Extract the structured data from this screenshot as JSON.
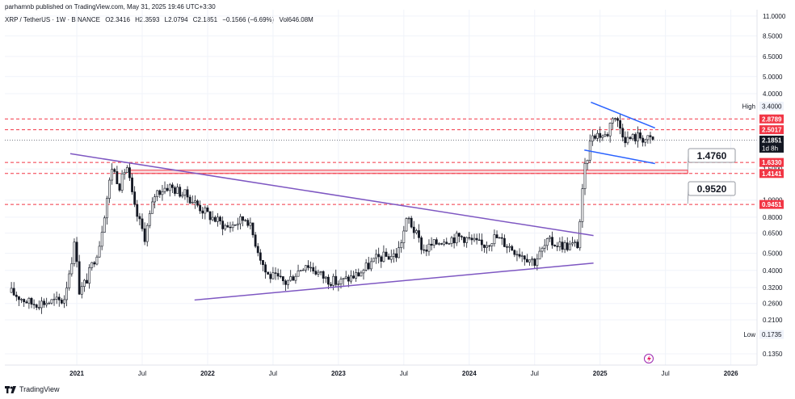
{
  "header": {
    "publisher_line": "parhamnb published on TradingView.com, May 31, 2025 19:46 UTC+3:30",
    "symbol": "XRP / TetherUS · 1W · BINANCE",
    "open": "O2.3416",
    "high": "H2.3593",
    "low": "L2.0794",
    "close": "C2.1851",
    "change": "−0.1566 (−6.69%)",
    "volume": "Vol646.08M"
  },
  "footer": {
    "brand": "TradingView",
    "logo_icon": "tradingview-logo-icon"
  },
  "colors": {
    "candle": "#131722",
    "purple_line": "#7e57c2",
    "blue_channel": "#2962ff",
    "red_level": "#f23645",
    "zone_fill": "#f8d7d9",
    "axis_text": "#131722",
    "callout_border": "#131722"
  },
  "chart_data": {
    "type": "candlestick",
    "timeframe": "1W",
    "y_scale": "log",
    "y_ticks": [
      {
        "value": 11.0,
        "label": "11.0000"
      },
      {
        "value": 8.5,
        "label": "8.5000"
      },
      {
        "value": 6.5,
        "label": "6.5000"
      },
      {
        "value": 5.0,
        "label": "5.0000"
      },
      {
        "value": 4.0,
        "label": "4.0000"
      },
      {
        "value": 1.5,
        "label": "1.5000"
      },
      {
        "value": 1.0,
        "label": "1.0000"
      },
      {
        "value": 0.8,
        "label": "0.8000"
      },
      {
        "value": 0.65,
        "label": "0.6500"
      },
      {
        "value": 0.5,
        "label": "0.5000"
      },
      {
        "value": 0.4,
        "label": "0.4000"
      },
      {
        "value": 0.32,
        "label": "0.3200"
      },
      {
        "value": 0.26,
        "label": "0.2600"
      },
      {
        "value": 0.21,
        "label": "0.2100"
      },
      {
        "value": 0.135,
        "label": "0.1350"
      }
    ],
    "x_ticks": [
      {
        "t": 2021.0,
        "label": "2021",
        "bold": true
      },
      {
        "t": 2021.5,
        "label": "Jul",
        "bold": false
      },
      {
        "t": 2022.0,
        "label": "2022",
        "bold": true
      },
      {
        "t": 2022.5,
        "label": "Jul",
        "bold": false
      },
      {
        "t": 2023.0,
        "label": "2023",
        "bold": true
      },
      {
        "t": 2023.5,
        "label": "Jul",
        "bold": false
      },
      {
        "t": 2024.0,
        "label": "2024",
        "bold": true
      },
      {
        "t": 2024.5,
        "label": "Jul",
        "bold": false
      },
      {
        "t": 2025.0,
        "label": "2025",
        "bold": true
      },
      {
        "t": 2025.5,
        "label": "Jul",
        "bold": false
      },
      {
        "t": 2026.0,
        "label": "2026",
        "bold": true
      }
    ],
    "price_labels": [
      {
        "label": "High",
        "value": 3.4,
        "text": "3.4000",
        "style": "plain"
      },
      {
        "value": 2.8789,
        "text": "2.8789",
        "style": "red"
      },
      {
        "value": 2.5017,
        "text": "2.5017",
        "style": "red"
      },
      {
        "value": 2.1851,
        "text": "2.1851",
        "sub": "1d 8h",
        "style": "current"
      },
      {
        "value": 1.633,
        "text": "1.6330",
        "style": "red"
      },
      {
        "value": 1.4141,
        "text": "1.4141",
        "style": "red"
      },
      {
        "value": 0.9451,
        "text": "0.9451",
        "style": "red"
      },
      {
        "label": "Low",
        "value": 0.1735,
        "text": "0.1735",
        "style": "plain"
      }
    ],
    "horizontal_levels": [
      2.8789,
      2.5017,
      1.633,
      1.4141,
      0.9451
    ],
    "zone": {
      "from_t": 2021.4,
      "to_t": 2025.67,
      "top": 1.476,
      "bottom": 1.4141
    },
    "callouts": [
      {
        "text": "1.4760",
        "value": 1.476
      },
      {
        "text": "0.9520",
        "value": 0.952
      }
    ],
    "trendlines": [
      {
        "name": "",
        "color": "purple",
        "points": [
          {
            "t": 2020.95,
            "v": 1.83
          },
          {
            "t": 2024.95,
            "v": 0.63
          }
        ]
      },
      {
        "name": "",
        "color": "purple",
        "points": [
          {
            "t": 2021.9,
            "v": 0.272
          },
          {
            "t": 2024.95,
            "v": 0.44
          }
        ]
      },
      {
        "name": "",
        "color": "blue",
        "points": [
          {
            "t": 2024.93,
            "v": 3.58
          },
          {
            "t": 2025.42,
            "v": 2.56
          }
        ]
      },
      {
        "name": "",
        "color": "blue",
        "points": [
          {
            "t": 2024.88,
            "v": 1.92
          },
          {
            "t": 2025.42,
            "v": 1.61
          }
        ]
      }
    ],
    "price_anchors": [
      {
        "t": 2020.5,
        "v": 0.3
      },
      {
        "t": 2020.65,
        "v": 0.26
      },
      {
        "t": 2020.9,
        "v": 0.27
      },
      {
        "t": 2020.99,
        "v": 0.6
      },
      {
        "t": 2021.02,
        "v": 0.3
      },
      {
        "t": 2021.08,
        "v": 0.36
      },
      {
        "t": 2021.17,
        "v": 0.55
      },
      {
        "t": 2021.27,
        "v": 1.55
      },
      {
        "t": 2021.33,
        "v": 1.2
      },
      {
        "t": 2021.38,
        "v": 1.6
      },
      {
        "t": 2021.44,
        "v": 0.9
      },
      {
        "t": 2021.52,
        "v": 0.62
      },
      {
        "t": 2021.6,
        "v": 1.1
      },
      {
        "t": 2021.7,
        "v": 1.2
      },
      {
        "t": 2021.85,
        "v": 1.05
      },
      {
        "t": 2022.0,
        "v": 0.83
      },
      {
        "t": 2022.15,
        "v": 0.7
      },
      {
        "t": 2022.3,
        "v": 0.8
      },
      {
        "t": 2022.45,
        "v": 0.38
      },
      {
        "t": 2022.6,
        "v": 0.34
      },
      {
        "t": 2022.75,
        "v": 0.44
      },
      {
        "t": 2022.9,
        "v": 0.36
      },
      {
        "t": 2023.0,
        "v": 0.34
      },
      {
        "t": 2023.15,
        "v": 0.38
      },
      {
        "t": 2023.3,
        "v": 0.47
      },
      {
        "t": 2023.45,
        "v": 0.49
      },
      {
        "t": 2023.53,
        "v": 0.8
      },
      {
        "t": 2023.65,
        "v": 0.52
      },
      {
        "t": 2023.8,
        "v": 0.6
      },
      {
        "t": 2023.95,
        "v": 0.62
      },
      {
        "t": 2024.1,
        "v": 0.55
      },
      {
        "t": 2024.2,
        "v": 0.62
      },
      {
        "t": 2024.35,
        "v": 0.52
      },
      {
        "t": 2024.5,
        "v": 0.45
      },
      {
        "t": 2024.6,
        "v": 0.58
      },
      {
        "t": 2024.75,
        "v": 0.55
      },
      {
        "t": 2024.83,
        "v": 0.56
      },
      {
        "t": 2024.88,
        "v": 1.45
      },
      {
        "t": 2024.94,
        "v": 2.4
      },
      {
        "t": 2025.05,
        "v": 2.3
      },
      {
        "t": 2025.1,
        "v": 3.1
      },
      {
        "t": 2025.2,
        "v": 2.2
      },
      {
        "t": 2025.3,
        "v": 2.3
      },
      {
        "t": 2025.35,
        "v": 2.2
      },
      {
        "t": 2025.41,
        "v": 2.1851
      }
    ]
  }
}
